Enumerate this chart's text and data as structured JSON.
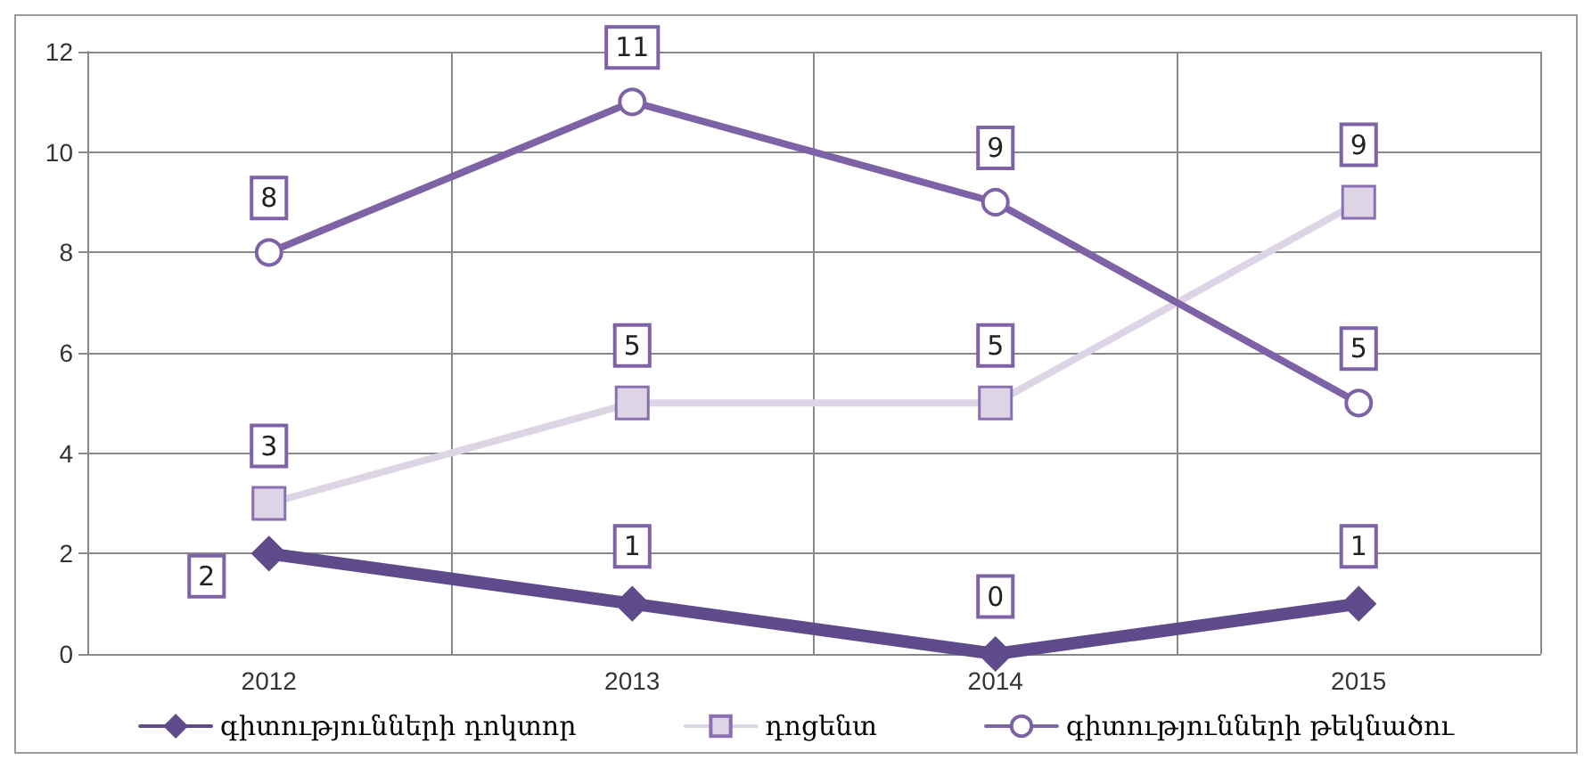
{
  "chart_data": {
    "type": "line",
    "categories": [
      "2012",
      "2013",
      "2014",
      "2015"
    ],
    "series": [
      {
        "name": "գիտությունների դոկտոր",
        "color": "#5f4b8b",
        "marker": "diamond",
        "values": [
          2,
          1,
          0,
          1
        ]
      },
      {
        "name": "դոցենտ",
        "color": "#ddd5e6",
        "marker": "square",
        "values": [
          3,
          5,
          5,
          9
        ]
      },
      {
        "name": "գիտությունների թեկնածու",
        "color": "#7e62a6",
        "marker": "circle",
        "values": [
          8,
          11,
          9,
          5
        ]
      }
    ],
    "ylim": [
      0,
      12
    ],
    "yticks": [
      0,
      2,
      4,
      6,
      8,
      10,
      12
    ],
    "grid": true,
    "legend": "bottom",
    "data_labels": true
  }
}
